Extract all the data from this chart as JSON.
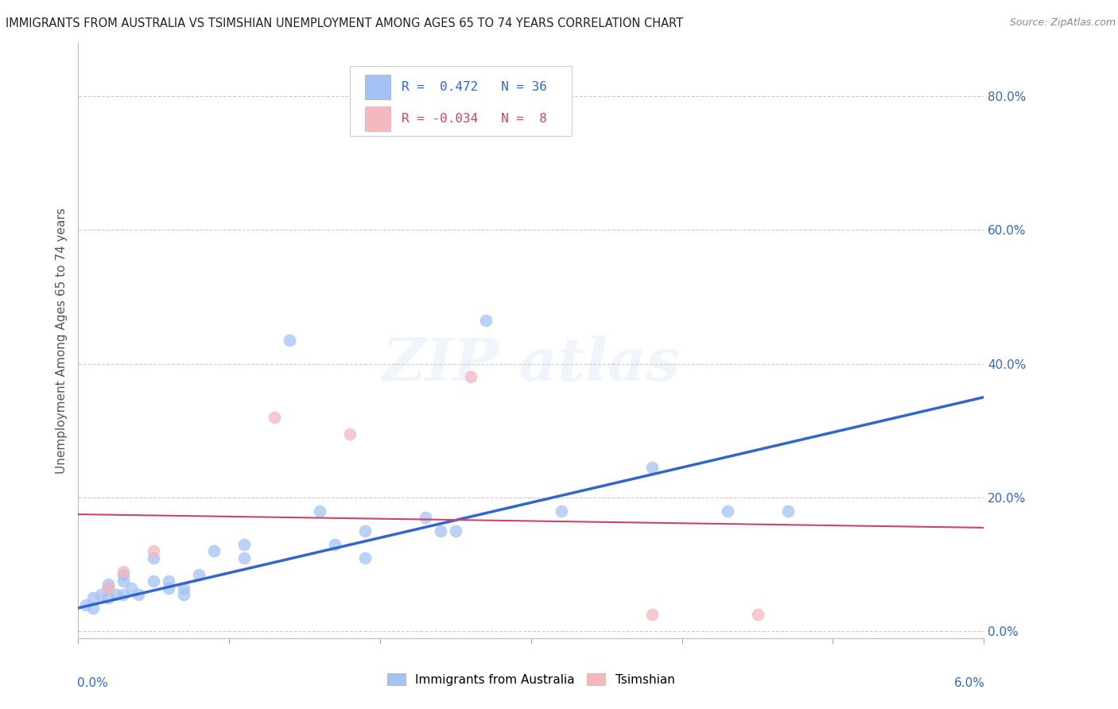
{
  "title": "IMMIGRANTS FROM AUSTRALIA VS TSIMSHIAN UNEMPLOYMENT AMONG AGES 65 TO 74 YEARS CORRELATION CHART",
  "source": "Source: ZipAtlas.com",
  "ylabel": "Unemployment Among Ages 65 to 74 years",
  "xlim": [
    0.0,
    0.06
  ],
  "ylim": [
    -0.01,
    0.88
  ],
  "blue_color": "#a4c2f4",
  "pink_color": "#f4b8c1",
  "line_blue": "#3366cc",
  "line_pink": "#cc4466",
  "blue_scatter": [
    [
      0.0005,
      0.04
    ],
    [
      0.001,
      0.05
    ],
    [
      0.001,
      0.035
    ],
    [
      0.0015,
      0.055
    ],
    [
      0.002,
      0.05
    ],
    [
      0.002,
      0.065
    ],
    [
      0.002,
      0.07
    ],
    [
      0.0025,
      0.055
    ],
    [
      0.003,
      0.075
    ],
    [
      0.003,
      0.085
    ],
    [
      0.003,
      0.055
    ],
    [
      0.0035,
      0.065
    ],
    [
      0.004,
      0.055
    ],
    [
      0.005,
      0.11
    ],
    [
      0.005,
      0.075
    ],
    [
      0.006,
      0.075
    ],
    [
      0.006,
      0.065
    ],
    [
      0.007,
      0.065
    ],
    [
      0.007,
      0.055
    ],
    [
      0.008,
      0.085
    ],
    [
      0.009,
      0.12
    ],
    [
      0.011,
      0.13
    ],
    [
      0.011,
      0.11
    ],
    [
      0.014,
      0.435
    ],
    [
      0.016,
      0.18
    ],
    [
      0.017,
      0.13
    ],
    [
      0.019,
      0.15
    ],
    [
      0.019,
      0.11
    ],
    [
      0.023,
      0.17
    ],
    [
      0.024,
      0.15
    ],
    [
      0.025,
      0.15
    ],
    [
      0.027,
      0.465
    ],
    [
      0.032,
      0.18
    ],
    [
      0.038,
      0.245
    ],
    [
      0.043,
      0.18
    ],
    [
      0.047,
      0.18
    ]
  ],
  "pink_scatter": [
    [
      0.002,
      0.065
    ],
    [
      0.003,
      0.09
    ],
    [
      0.005,
      0.12
    ],
    [
      0.013,
      0.32
    ],
    [
      0.018,
      0.295
    ],
    [
      0.026,
      0.38
    ],
    [
      0.038,
      0.025
    ],
    [
      0.045,
      0.025
    ]
  ],
  "blue_line_x": [
    0.0,
    0.06
  ],
  "blue_line_y": [
    0.035,
    0.35
  ],
  "pink_line_x": [
    0.0,
    0.06
  ],
  "pink_line_y": [
    0.175,
    0.155
  ],
  "yticks": [
    0.0,
    0.2,
    0.4,
    0.6,
    0.8
  ],
  "ytick_labels": [
    "0.0%",
    "20.0%",
    "40.0%",
    "60.0%",
    "80.0%"
  ],
  "xticks": [
    0.0,
    0.01,
    0.02,
    0.03,
    0.04,
    0.05,
    0.06
  ],
  "background_color": "#ffffff",
  "grid_color": "#cccccc"
}
